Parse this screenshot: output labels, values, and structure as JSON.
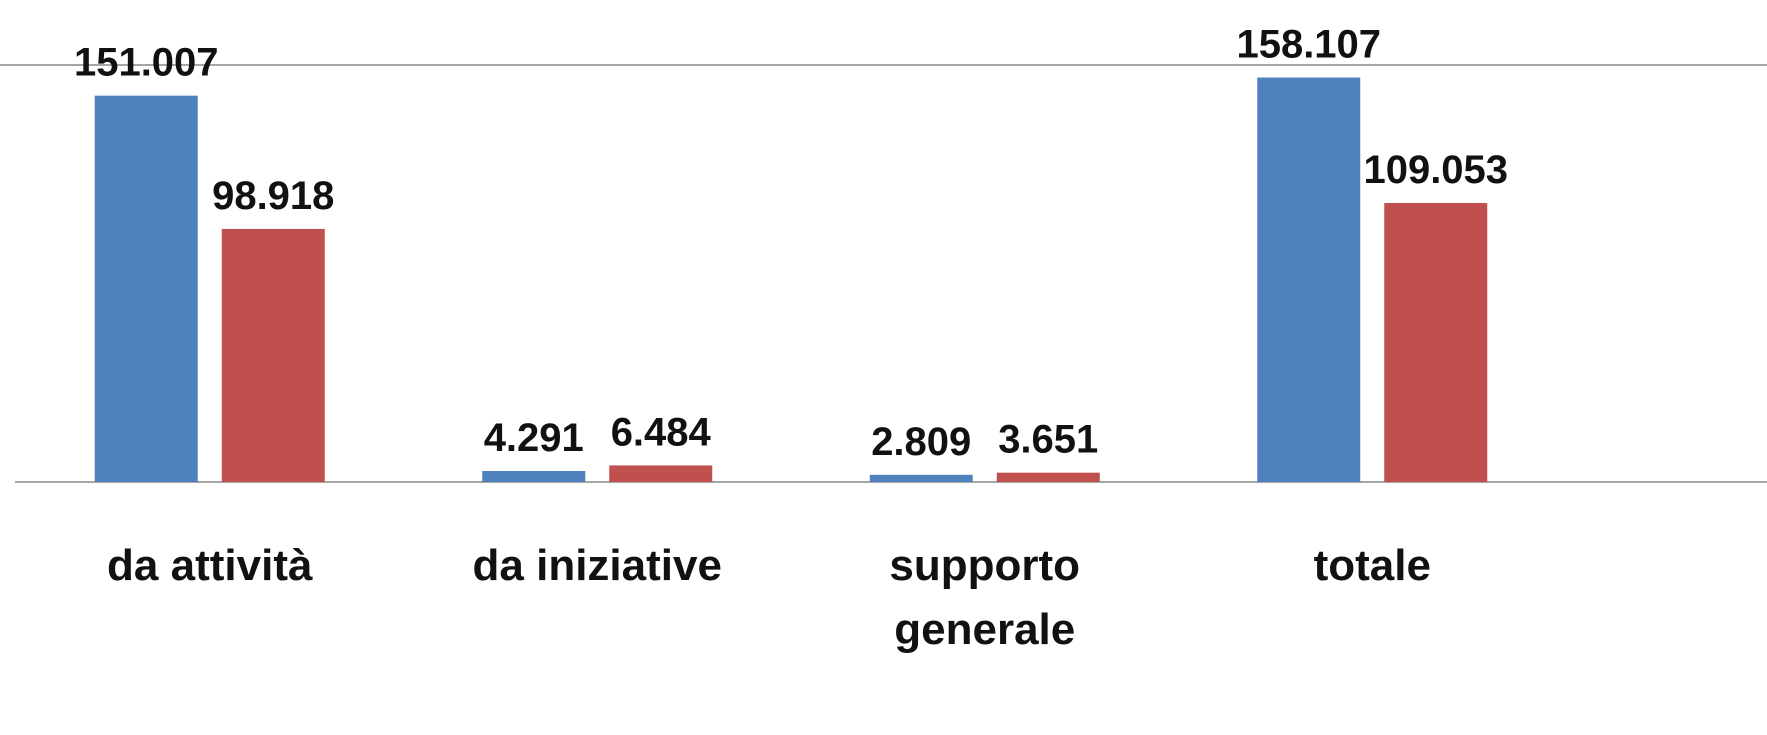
{
  "chart_data": {
    "type": "bar",
    "categories": [
      "da attività",
      "da iniziative",
      "supporto generale",
      "totale"
    ],
    "series": [
      {
        "color": "#4f81bd",
        "values": [
          151007,
          4291,
          2809,
          158107
        ],
        "value_labels": [
          "151.007",
          "4.291",
          "2.809",
          "158.107"
        ]
      },
      {
        "color": "#c0504d",
        "values": [
          98918,
          6484,
          3651,
          109053
        ],
        "value_labels": [
          "98.918",
          "6.484",
          "3.651",
          "109.053"
        ]
      }
    ],
    "ylim": [
      0,
      163000
    ]
  }
}
